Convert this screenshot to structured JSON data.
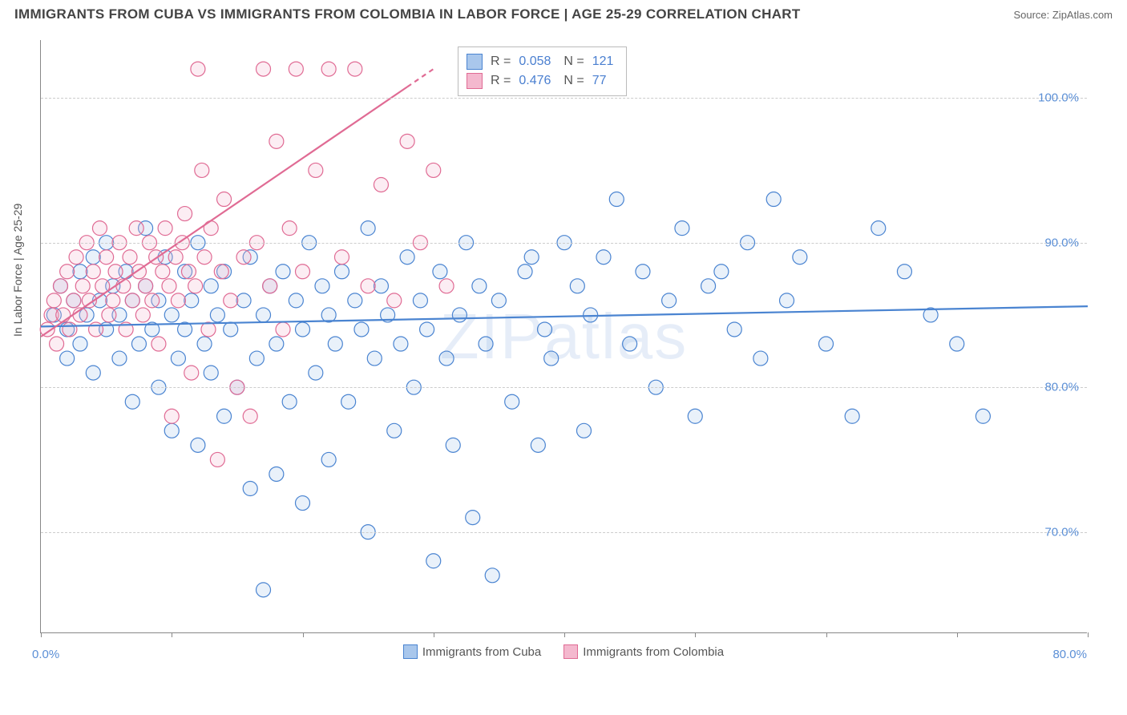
{
  "title": "IMMIGRANTS FROM CUBA VS IMMIGRANTS FROM COLOMBIA IN LABOR FORCE | AGE 25-29 CORRELATION CHART",
  "source": "Source: ZipAtlas.com",
  "y_axis_label": "In Labor Force | Age 25-29",
  "x_min_label": "0.0%",
  "x_max_label": "80.0%",
  "watermark": "ZIPatlas",
  "chart": {
    "type": "scatter",
    "xlim": [
      0,
      80
    ],
    "ylim": [
      63,
      104
    ],
    "y_ticks": [
      70,
      80,
      90,
      100
    ],
    "y_tick_labels": [
      "70.0%",
      "80.0%",
      "90.0%",
      "100.0%"
    ],
    "x_ticks": [
      0,
      10,
      20,
      30,
      40,
      50,
      60,
      70,
      80
    ],
    "grid_color": "#cccccc",
    "axis_color": "#888888",
    "background_color": "#ffffff",
    "marker_radius": 9,
    "marker_fill_opacity": 0.25,
    "marker_stroke_width": 1.2,
    "line_width": 2.2,
    "series": [
      {
        "name": "Immigrants from Cuba",
        "color_stroke": "#4a84d1",
        "color_fill": "#a9c7ec",
        "trend": {
          "x1": 0,
          "y1": 84.2,
          "x2": 80,
          "y2": 85.6,
          "dashed_after_x": null
        },
        "points": [
          [
            1,
            85
          ],
          [
            1.5,
            87
          ],
          [
            2,
            84
          ],
          [
            2,
            82
          ],
          [
            2.5,
            86
          ],
          [
            3,
            88
          ],
          [
            3,
            83
          ],
          [
            3.5,
            85
          ],
          [
            4,
            89
          ],
          [
            4,
            81
          ],
          [
            4.5,
            86
          ],
          [
            5,
            90
          ],
          [
            5,
            84
          ],
          [
            5.5,
            87
          ],
          [
            6,
            82
          ],
          [
            6,
            85
          ],
          [
            6.5,
            88
          ],
          [
            7,
            79
          ],
          [
            7,
            86
          ],
          [
            7.5,
            83
          ],
          [
            8,
            91
          ],
          [
            8,
            87
          ],
          [
            8.5,
            84
          ],
          [
            9,
            80
          ],
          [
            9,
            86
          ],
          [
            9.5,
            89
          ],
          [
            10,
            77
          ],
          [
            10,
            85
          ],
          [
            10.5,
            82
          ],
          [
            11,
            88
          ],
          [
            11,
            84
          ],
          [
            11.5,
            86
          ],
          [
            12,
            76
          ],
          [
            12,
            90
          ],
          [
            12.5,
            83
          ],
          [
            13,
            87
          ],
          [
            13,
            81
          ],
          [
            13.5,
            85
          ],
          [
            14,
            78
          ],
          [
            14,
            88
          ],
          [
            14.5,
            84
          ],
          [
            15,
            80
          ],
          [
            15.5,
            86
          ],
          [
            16,
            73
          ],
          [
            16,
            89
          ],
          [
            16.5,
            82
          ],
          [
            17,
            66
          ],
          [
            17,
            85
          ],
          [
            17.5,
            87
          ],
          [
            18,
            74
          ],
          [
            18,
            83
          ],
          [
            18.5,
            88
          ],
          [
            19,
            79
          ],
          [
            19.5,
            86
          ],
          [
            20,
            72
          ],
          [
            20,
            84
          ],
          [
            20.5,
            90
          ],
          [
            21,
            81
          ],
          [
            21.5,
            87
          ],
          [
            22,
            75
          ],
          [
            22,
            85
          ],
          [
            22.5,
            83
          ],
          [
            23,
            88
          ],
          [
            23.5,
            79
          ],
          [
            24,
            86
          ],
          [
            24.5,
            84
          ],
          [
            25,
            70
          ],
          [
            25,
            91
          ],
          [
            25.5,
            82
          ],
          [
            26,
            87
          ],
          [
            26.5,
            85
          ],
          [
            27,
            77
          ],
          [
            27.5,
            83
          ],
          [
            28,
            89
          ],
          [
            28.5,
            80
          ],
          [
            29,
            86
          ],
          [
            29.5,
            84
          ],
          [
            30,
            68
          ],
          [
            30.5,
            88
          ],
          [
            31,
            82
          ],
          [
            31.5,
            76
          ],
          [
            32,
            85
          ],
          [
            32.5,
            90
          ],
          [
            33,
            71
          ],
          [
            33.5,
            87
          ],
          [
            34,
            83
          ],
          [
            34.5,
            67
          ],
          [
            35,
            86
          ],
          [
            36,
            79
          ],
          [
            37,
            88
          ],
          [
            37.5,
            89
          ],
          [
            38,
            76
          ],
          [
            38.5,
            84
          ],
          [
            39,
            82
          ],
          [
            40,
            90
          ],
          [
            41,
            87
          ],
          [
            41.5,
            77
          ],
          [
            42,
            85
          ],
          [
            43,
            89
          ],
          [
            44,
            93
          ],
          [
            45,
            83
          ],
          [
            46,
            88
          ],
          [
            47,
            80
          ],
          [
            48,
            86
          ],
          [
            49,
            91
          ],
          [
            50,
            78
          ],
          [
            51,
            87
          ],
          [
            52,
            88
          ],
          [
            53,
            84
          ],
          [
            54,
            90
          ],
          [
            55,
            82
          ],
          [
            56,
            93
          ],
          [
            57,
            86
          ],
          [
            58,
            89
          ],
          [
            60,
            83
          ],
          [
            62,
            78
          ],
          [
            64,
            91
          ],
          [
            66,
            88
          ],
          [
            68,
            85
          ],
          [
            70,
            83
          ],
          [
            72,
            78
          ]
        ]
      },
      {
        "name": "Immigrants from Colombia",
        "color_stroke": "#e06b94",
        "color_fill": "#f4b8ce",
        "trend": {
          "x1": 0,
          "y1": 83.5,
          "x2": 30,
          "y2": 102,
          "dashed_after_x": 28
        },
        "points": [
          [
            0.5,
            84
          ],
          [
            0.8,
            85
          ],
          [
            1,
            86
          ],
          [
            1.2,
            83
          ],
          [
            1.5,
            87
          ],
          [
            1.7,
            85
          ],
          [
            2,
            88
          ],
          [
            2.2,
            84
          ],
          [
            2.5,
            86
          ],
          [
            2.7,
            89
          ],
          [
            3,
            85
          ],
          [
            3.2,
            87
          ],
          [
            3.5,
            90
          ],
          [
            3.7,
            86
          ],
          [
            4,
            88
          ],
          [
            4.2,
            84
          ],
          [
            4.5,
            91
          ],
          [
            4.7,
            87
          ],
          [
            5,
            89
          ],
          [
            5.2,
            85
          ],
          [
            5.5,
            86
          ],
          [
            5.7,
            88
          ],
          [
            6,
            90
          ],
          [
            6.3,
            87
          ],
          [
            6.5,
            84
          ],
          [
            6.8,
            89
          ],
          [
            7,
            86
          ],
          [
            7.3,
            91
          ],
          [
            7.5,
            88
          ],
          [
            7.8,
            85
          ],
          [
            8,
            87
          ],
          [
            8.3,
            90
          ],
          [
            8.5,
            86
          ],
          [
            8.8,
            89
          ],
          [
            9,
            83
          ],
          [
            9.3,
            88
          ],
          [
            9.5,
            91
          ],
          [
            9.8,
            87
          ],
          [
            10,
            78
          ],
          [
            10.3,
            89
          ],
          [
            10.5,
            86
          ],
          [
            10.8,
            90
          ],
          [
            11,
            92
          ],
          [
            11.3,
            88
          ],
          [
            11.5,
            81
          ],
          [
            11.8,
            87
          ],
          [
            12,
            102
          ],
          [
            12.3,
            95
          ],
          [
            12.5,
            89
          ],
          [
            12.8,
            84
          ],
          [
            13,
            91
          ],
          [
            13.5,
            75
          ],
          [
            13.8,
            88
          ],
          [
            14,
            93
          ],
          [
            14.5,
            86
          ],
          [
            15,
            80
          ],
          [
            15.5,
            89
          ],
          [
            16,
            78
          ],
          [
            16.5,
            90
          ],
          [
            17,
            102
          ],
          [
            17.5,
            87
          ],
          [
            18,
            97
          ],
          [
            18.5,
            84
          ],
          [
            19,
            91
          ],
          [
            19.5,
            102
          ],
          [
            20,
            88
          ],
          [
            21,
            95
          ],
          [
            22,
            102
          ],
          [
            23,
            89
          ],
          [
            24,
            102
          ],
          [
            25,
            87
          ],
          [
            26,
            94
          ],
          [
            27,
            86
          ],
          [
            28,
            97
          ],
          [
            29,
            90
          ],
          [
            30,
            95
          ],
          [
            31,
            87
          ]
        ]
      }
    ]
  },
  "stat_box": {
    "rows": [
      {
        "swatch_fill": "#a9c7ec",
        "swatch_stroke": "#4a84d1",
        "r_label": "R =",
        "r_value": "0.058",
        "n_label": "N =",
        "n_value": "121"
      },
      {
        "swatch_fill": "#f4b8ce",
        "swatch_stroke": "#e06b94",
        "r_label": "R =",
        "r_value": "0.476",
        "n_label": "N =",
        "n_value": "77"
      }
    ]
  },
  "bottom_legend": [
    {
      "swatch_fill": "#a9c7ec",
      "swatch_stroke": "#4a84d1",
      "label": "Immigrants from Cuba"
    },
    {
      "swatch_fill": "#f4b8ce",
      "swatch_stroke": "#e06b94",
      "label": "Immigrants from Colombia"
    }
  ]
}
